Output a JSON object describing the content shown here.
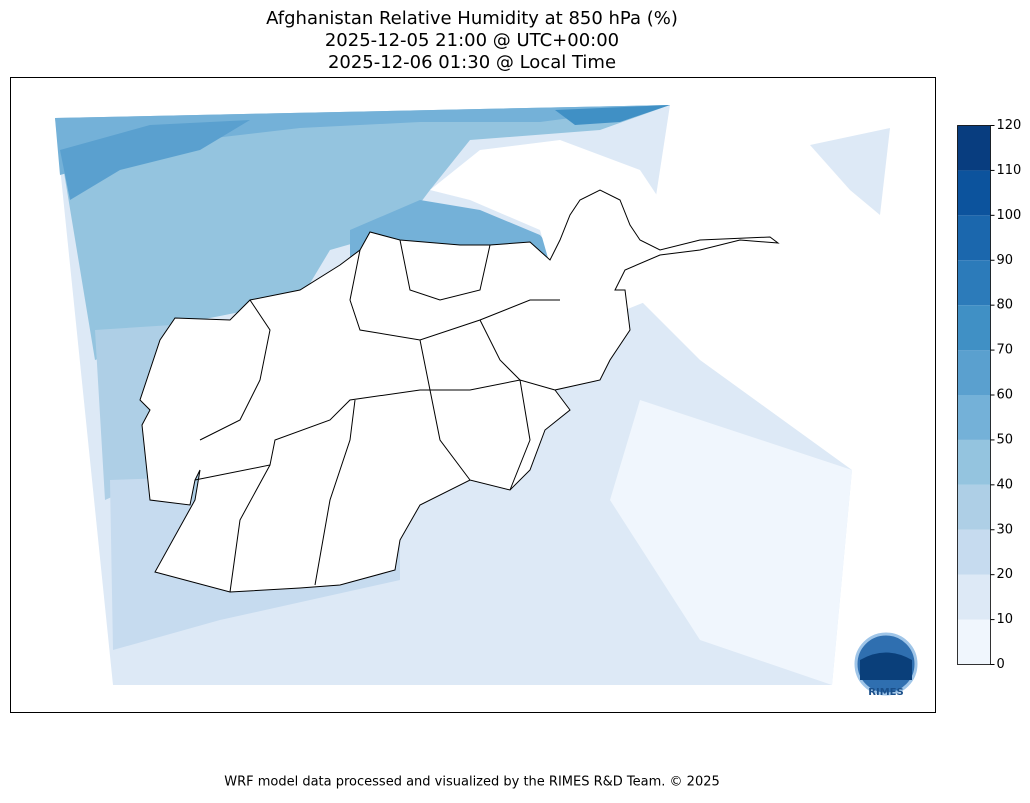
{
  "title_lines": [
    "Afghanistan Relative Humidity at 850 hPa (%)",
    "2025-12-05 21:00 @ UTC+00:00",
    "2025-12-06 01:30 @ Local Time"
  ],
  "colorbar": {
    "ticks": [
      0,
      10,
      20,
      30,
      40,
      50,
      60,
      70,
      80,
      90,
      100,
      110,
      120
    ],
    "colors": [
      "#f0f6fd",
      "#dde9f6",
      "#c6dbef",
      "#aecfe6",
      "#94c4df",
      "#74b1d8",
      "#5aa0cf",
      "#4090c5",
      "#2c7bba",
      "#1b67ad",
      "#0c539d",
      "#083d7f"
    ]
  },
  "footer": "WRF model data processed and visualized by the RIMES R&D Team. © 2025",
  "logo": "RIMES"
}
